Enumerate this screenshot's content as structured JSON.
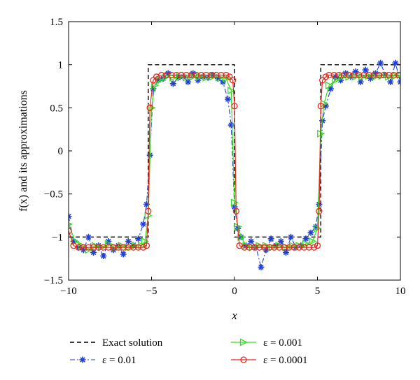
{
  "chart_data": {
    "type": "line",
    "xlabel": "x",
    "ylabel": "f(x) and its approximations",
    "xlim": [
      -10,
      10
    ],
    "ylim": [
      -1.5,
      1.5
    ],
    "xticks": [
      "−10",
      "−5",
      "0",
      "5",
      "10"
    ],
    "yticks": [
      "1.5",
      "1",
      "0.5",
      "0",
      "−0.5",
      "−1",
      "−1.5"
    ],
    "grid": false,
    "legend_position": "bottom",
    "series": [
      {
        "name": "Exact solution",
        "color": "#000000",
        "marker": "none",
        "x": [
          -10,
          -5.2,
          -5.2,
          0,
          0,
          5.2,
          5.2,
          10
        ],
        "y": [
          -1,
          -1,
          1,
          1,
          -1,
          -1,
          1,
          1
        ]
      },
      {
        "name": "ε = 0.01",
        "color": "#1f3fd6",
        "marker": "star",
        "x": [
          -10,
          -9.7,
          -9.4,
          -9.1,
          -8.8,
          -8.5,
          -8.2,
          -7.9,
          -7.6,
          -7.3,
          -7.0,
          -6.7,
          -6.4,
          -6.1,
          -5.8,
          -5.5,
          -5.3,
          -5.1,
          -4.9,
          -4.6,
          -4.3,
          -4.0,
          -3.7,
          -3.4,
          -3.1,
          -2.8,
          -2.5,
          -2.2,
          -1.9,
          -1.6,
          -1.3,
          -1.0,
          -0.7,
          -0.4,
          -0.2,
          0.0,
          0.2,
          0.4,
          0.7,
          1.0,
          1.3,
          1.6,
          1.9,
          2.2,
          2.5,
          2.8,
          3.1,
          3.4,
          3.7,
          4.0,
          4.3,
          4.6,
          4.9,
          5.1,
          5.3,
          5.5,
          5.8,
          6.1,
          6.4,
          6.7,
          7.0,
          7.3,
          7.6,
          7.9,
          8.2,
          8.5,
          8.8,
          9.1,
          9.4,
          9.7,
          10
        ],
        "y": [
          -0.76,
          -1.05,
          -1.12,
          -1.15,
          -1.0,
          -1.18,
          -1.1,
          -1.22,
          -1.05,
          -1.15,
          -1.1,
          -1.2,
          -1.05,
          -1.1,
          -1.02,
          -0.85,
          -0.62,
          -0.05,
          0.72,
          0.82,
          0.84,
          0.9,
          0.78,
          0.85,
          0.86,
          0.8,
          0.9,
          0.82,
          0.86,
          0.85,
          0.88,
          0.84,
          0.8,
          0.6,
          0.3,
          -0.65,
          -0.9,
          -1.0,
          -1.1,
          -1.05,
          -1.12,
          -1.35,
          -1.15,
          -1.02,
          -1.1,
          -1.05,
          -1.18,
          -1.0,
          -1.12,
          -1.1,
          -1.02,
          -0.95,
          -0.88,
          -0.62,
          0.35,
          0.52,
          0.72,
          0.86,
          0.82,
          0.9,
          0.86,
          0.92,
          0.8,
          0.94,
          0.84,
          0.9,
          1.02,
          0.88,
          0.8,
          1.02,
          0.8
        ]
      },
      {
        "name": "ε = 0.001",
        "color": "#33dd22",
        "marker": "triangle-right",
        "x": [
          -10,
          -9.6,
          -9.2,
          -8.8,
          -8.4,
          -8.0,
          -7.6,
          -7.2,
          -6.8,
          -6.4,
          -6.0,
          -5.6,
          -5.4,
          -5.2,
          -5.0,
          -4.8,
          -4.5,
          -4.1,
          -3.7,
          -3.3,
          -2.9,
          -2.5,
          -2.1,
          -1.7,
          -1.3,
          -0.9,
          -0.5,
          -0.2,
          0.0,
          0.2,
          0.4,
          0.7,
          1.1,
          1.5,
          1.9,
          2.3,
          2.7,
          3.1,
          3.5,
          3.9,
          4.3,
          4.7,
          5.0,
          5.2,
          5.4,
          5.7,
          6.1,
          6.5,
          6.9,
          7.3,
          7.7,
          8.1,
          8.5,
          8.9,
          9.3,
          9.7,
          10
        ],
        "y": [
          -0.85,
          -1.05,
          -1.1,
          -1.15,
          -1.1,
          -1.12,
          -1.08,
          -1.12,
          -1.1,
          -1.12,
          -1.1,
          -1.1,
          -1.05,
          -0.75,
          0.5,
          0.76,
          0.82,
          0.86,
          0.85,
          0.86,
          0.85,
          0.86,
          0.86,
          0.85,
          0.86,
          0.85,
          0.84,
          0.7,
          -0.6,
          -0.88,
          -1.0,
          -1.1,
          -1.12,
          -1.1,
          -1.1,
          -1.12,
          -1.1,
          -1.12,
          -1.1,
          -1.1,
          -1.08,
          -1.05,
          -0.9,
          0.2,
          0.55,
          0.76,
          0.82,
          0.86,
          0.86,
          0.86,
          0.86,
          0.87,
          0.86,
          0.87,
          0.86,
          0.87,
          0.88
        ]
      },
      {
        "name": "ε = 0.0001",
        "color": "#e8281e",
        "marker": "circle",
        "x": [
          -10,
          -9.7,
          -9.4,
          -9.1,
          -8.8,
          -8.5,
          -8.2,
          -7.9,
          -7.6,
          -7.3,
          -7.0,
          -6.7,
          -6.4,
          -6.1,
          -5.8,
          -5.5,
          -5.3,
          -5.2,
          -5.1,
          -4.9,
          -4.7,
          -4.4,
          -4.1,
          -3.8,
          -3.5,
          -3.2,
          -2.9,
          -2.6,
          -2.3,
          -2.0,
          -1.7,
          -1.4,
          -1.1,
          -0.8,
          -0.5,
          -0.3,
          -0.1,
          0.0,
          0.1,
          0.3,
          0.6,
          0.9,
          1.2,
          1.5,
          1.8,
          2.1,
          2.4,
          2.7,
          3.0,
          3.3,
          3.6,
          3.9,
          4.2,
          4.5,
          4.8,
          5.0,
          5.1,
          5.2,
          5.3,
          5.5,
          5.7,
          6.0,
          6.3,
          6.6,
          6.9,
          7.2,
          7.5,
          7.8,
          8.1,
          8.4,
          8.7,
          9.0,
          9.3,
          9.6,
          9.9
        ],
        "y": [
          -0.93,
          -1.1,
          -1.12,
          -1.12,
          -1.12,
          -1.12,
          -1.12,
          -1.12,
          -1.12,
          -1.12,
          -1.12,
          -1.12,
          -1.12,
          -1.12,
          -1.12,
          -1.12,
          -1.1,
          -0.7,
          0.5,
          0.82,
          0.86,
          0.88,
          0.88,
          0.88,
          0.88,
          0.88,
          0.88,
          0.88,
          0.88,
          0.88,
          0.88,
          0.88,
          0.88,
          0.88,
          0.88,
          0.86,
          0.82,
          0.52,
          -0.7,
          -1.1,
          -1.12,
          -1.12,
          -1.12,
          -1.12,
          -1.12,
          -1.12,
          -1.12,
          -1.12,
          -1.12,
          -1.12,
          -1.12,
          -1.12,
          -1.12,
          -1.12,
          -1.12,
          -1.1,
          -0.7,
          0.52,
          0.82,
          0.86,
          0.88,
          0.88,
          0.88,
          0.88,
          0.88,
          0.88,
          0.88,
          0.88,
          0.88,
          0.88,
          0.88,
          0.88,
          0.88,
          0.88,
          0.88
        ]
      }
    ]
  }
}
